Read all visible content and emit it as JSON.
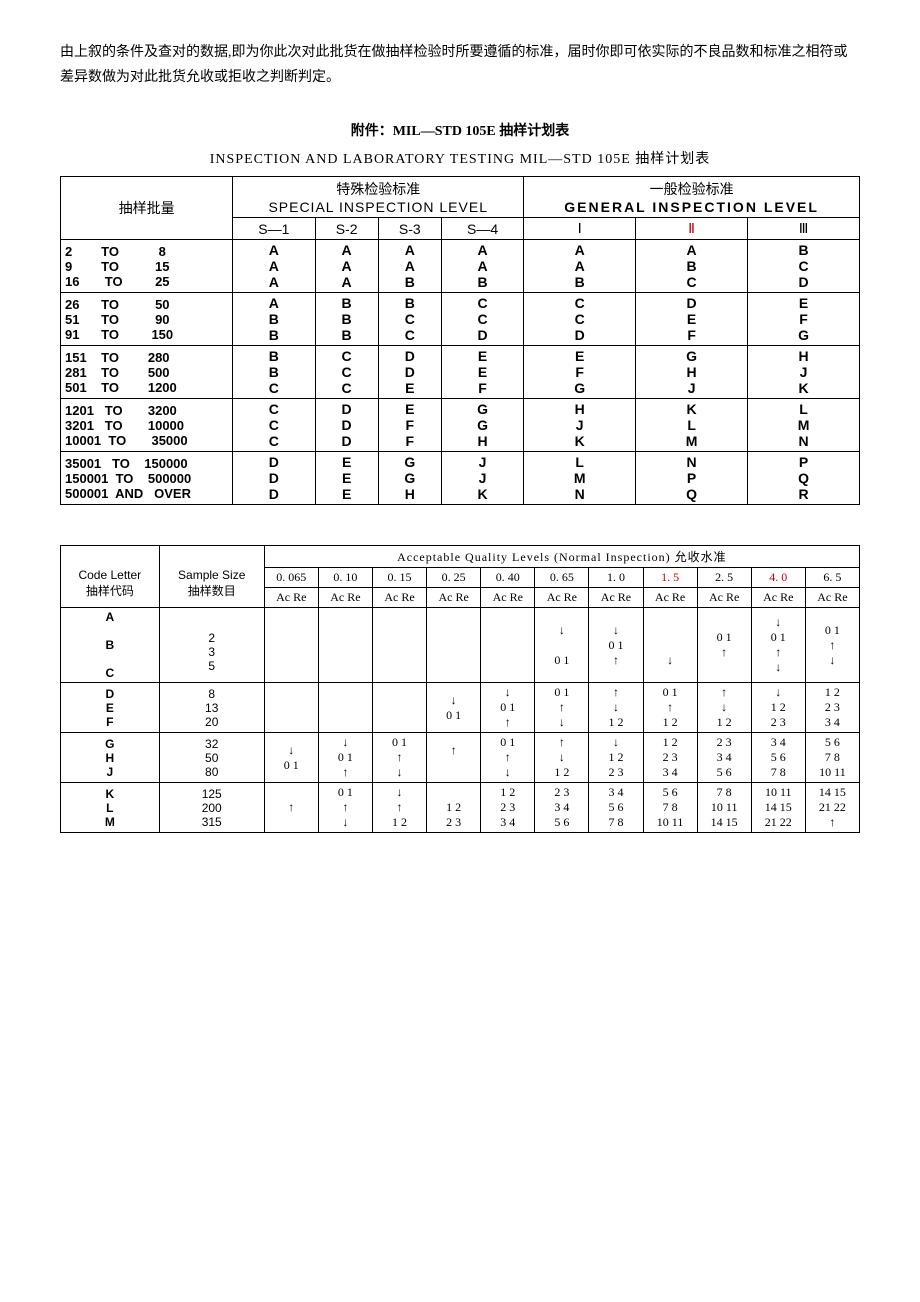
{
  "intro": "由上叙的条件及查对的数据,即为你此次对此批货在做抽样检验时所要遵循的标准，届时你即可依实际的不良品数和标准之相符或差异数做为对此批货允收或拒收之判断判定。",
  "t1": {
    "title": "附件：MIL—STD  105E 抽样计划表",
    "subtitle": "INSPECTION AND LABORATORY TESTING MIL—STD  105E  抽样计划表",
    "lot_header": "抽样批量",
    "special_header": "特殊检验标准",
    "special_sub": "SPECIAL INSPECTION LEVEL",
    "general_header": "一般检验标准",
    "general_sub": "GENERAL INSPECTION  LEVEL",
    "cols": [
      "S—1",
      "S-2",
      "S-3",
      "S—4",
      "Ⅰ",
      "Ⅱ",
      "Ⅲ"
    ],
    "groups": [
      {
        "lot": "2        TO           8\n9        TO          15\n16       TO         25",
        "v": [
          "A\nA\nA",
          "A\nA\nA",
          "A\nA\nB",
          "A\nA\nB",
          "A\nA\nB",
          "A\nB\nC",
          "B\nC\nD"
        ]
      },
      {
        "lot": "26      TO          50\n51      TO          90\n91      TO         150",
        "v": [
          "A\nB\nB",
          "B\nB\nB",
          "B\nC\nC",
          "C\nC\nD",
          "C\nC\nD",
          "D\nE\nF",
          "E\nF\nG"
        ]
      },
      {
        "lot": "151    TO        280\n281    TO        500\n501    TO        1200",
        "v": [
          "B\nB\nC",
          "C\nC\nC",
          "D\nD\nE",
          "E\nE\nF",
          "E\nF\nG",
          "G\nH\nJ",
          "H\nJ\nK"
        ]
      },
      {
        "lot": "1201   TO       3200\n3201   TO       10000\n10001  TO       35000",
        "v": [
          "C\nC\nC",
          "D\nD\nD",
          "E\nF\nF",
          "G\nG\nH",
          "H\nJ\nK",
          "K\nL\nM",
          "L\nM\nN"
        ]
      },
      {
        "lot": "35001   TO    150000\n150001  TO    500000\n500001  AND   OVER",
        "v": [
          "D\nD\nD",
          "E\nE\nE",
          "G\nG\nH",
          "J\nJ\nK",
          "L\nM\nN",
          "N\nP\nQ",
          "P\nQ\nR"
        ]
      }
    ]
  },
  "t2": {
    "aql_header": "Acceptable Quality Levels (Normal Inspection) 允收水准",
    "code_h1": "Code Letter",
    "code_h2": "抽样代码",
    "size_h1": "Sample Size",
    "size_h2": "抽样数目",
    "acre": "Ac Re",
    "aqls": [
      "0. 065",
      "0. 10",
      "0. 15",
      "0. 25",
      "0. 40",
      "0. 65",
      "1. 0",
      "1. 5",
      "2. 5",
      "4. 0",
      "6. 5"
    ],
    "aql_red": [
      false,
      false,
      false,
      false,
      false,
      false,
      false,
      true,
      false,
      true,
      false
    ],
    "rows": [
      {
        "code": "A\n\nB\n\nC",
        "size": "\n2\n3\n5\n",
        "c": [
          "",
          "",
          "",
          "",
          "",
          "↓\n\n0   1",
          "↓\n0   1\n↑",
          "\n\n↓",
          "0   1\n↑\n",
          "↓\n0   1\n↑\n↓",
          "0   1\n↑\n↓\n"
        ]
      },
      {
        "code": "D\nE\nF",
        "size": "8\n13\n20",
        "c": [
          "",
          "",
          "",
          "↓\n0   1",
          "↓\n0   1\n↑",
          "0   1\n↑\n↓",
          "↑\n↓\n1   2",
          "0   1\n↑\n1   2",
          "↑\n↓\n1   2",
          "↓\n1   2\n2   3",
          "1   2\n2   3\n3   4"
        ]
      },
      {
        "code": "G\nH\nJ",
        "size": "32\n50\n80",
        "c": [
          "↓\n0   1",
          "↓\n0   1\n↑",
          "0   1\n↑\n↓",
          "↑\n\n",
          "0   1\n↑\n↓",
          "↑\n↓\n1   2",
          "↓\n1   2\n2   3",
          "1   2\n2   3\n3   4",
          "2   3\n3   4\n5   6",
          "3   4\n5   6\n7   8",
          "5   6\n7   8\n10  11"
        ]
      },
      {
        "code": "K\nL\nM",
        "size": "125\n200\n315",
        "c": [
          "↑",
          "0   1\n↑\n↓",
          "↓\n↑\n1   2",
          "\n1   2\n2   3",
          "1   2\n2   3\n3   4",
          "2   3\n3   4\n5   6",
          "3   4\n5   6\n7   8",
          "5   6\n7   8\n10  11",
          "7   8\n10  11\n14  15",
          "10  11\n14  15\n21  22",
          "14  15\n21  22\n↑"
        ]
      }
    ]
  }
}
